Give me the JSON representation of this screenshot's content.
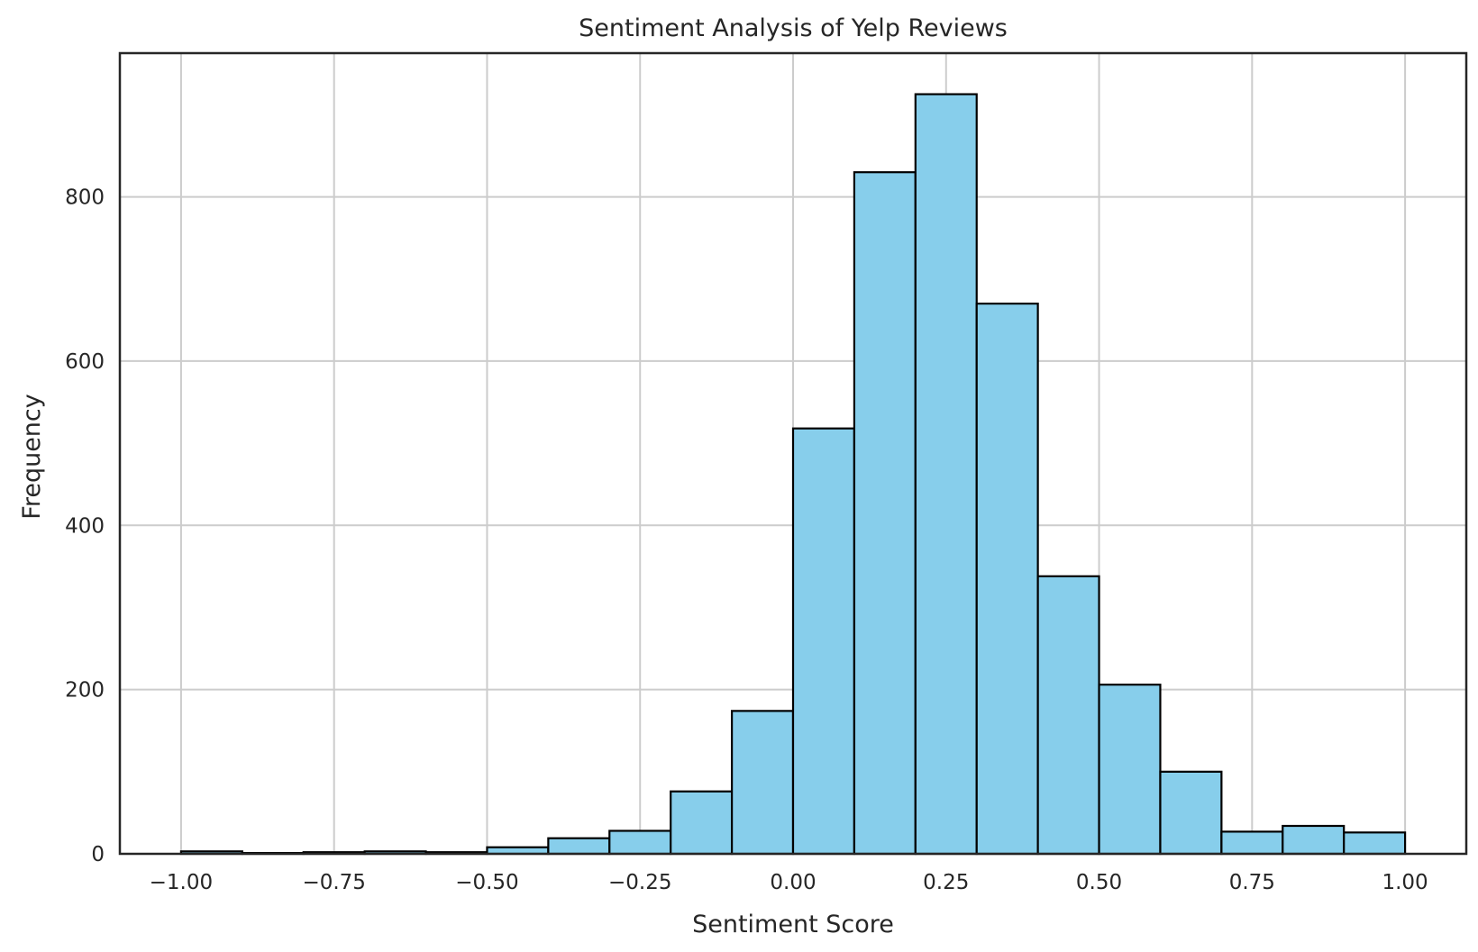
{
  "chart_data": {
    "type": "bar",
    "title": "Sentiment Analysis of Yelp Reviews",
    "xlabel": "Sentiment Score",
    "ylabel": "Frequency",
    "xlim": [
      -1.1,
      1.1
    ],
    "ylim": [
      0,
      975
    ],
    "grid": true,
    "bin_edges": [
      -1.0,
      -0.9,
      -0.8,
      -0.7,
      -0.6,
      -0.5,
      -0.4,
      -0.3,
      -0.2,
      -0.1,
      0.0,
      0.1,
      0.2,
      0.3,
      0.4,
      0.5,
      0.6,
      0.7,
      0.8,
      0.9,
      1.0
    ],
    "values": [
      3,
      1,
      2,
      3,
      2,
      8,
      19,
      28,
      76,
      174,
      518,
      830,
      925,
      670,
      338,
      206,
      100,
      27,
      34,
      26
    ],
    "x_ticks": [
      -1.0,
      -0.75,
      -0.5,
      -0.25,
      0.0,
      0.25,
      0.5,
      0.75,
      1.0
    ],
    "x_tick_labels": [
      "−1.00",
      "−0.75",
      "−0.50",
      "−0.25",
      "0.00",
      "0.25",
      "0.50",
      "0.75",
      "1.00"
    ],
    "y_ticks": [
      0,
      200,
      400,
      600,
      800
    ],
    "y_tick_labels": [
      "0",
      "200",
      "400",
      "600",
      "800"
    ],
    "bar_color": "#87CEEB",
    "edge_color": "#000000",
    "grid_color": "#cccccc"
  }
}
